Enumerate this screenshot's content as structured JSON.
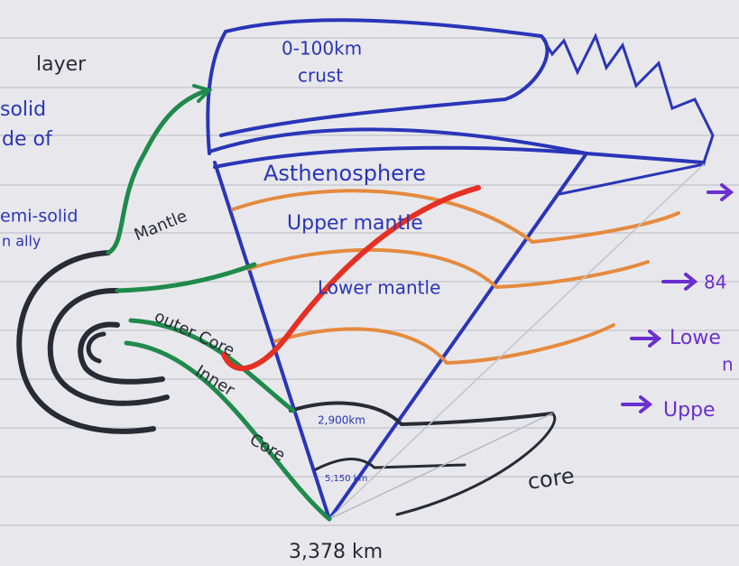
{
  "left_notes": [
    "layer",
    "solid",
    "de of",
    "emi-solid",
    "n ally"
  ],
  "diagram": {
    "crust_depth": "0-100km",
    "crust": "crust",
    "asthenosphere": "Asthenosphere",
    "upper_mantle": "Upper mantle",
    "lower_mantle": "Lower mantle",
    "mantle": "Mantle",
    "outer_core": "outer Core",
    "inner": "Inner",
    "inner_core": "Core",
    "depth_outer": "2,900km",
    "depth_inner": "5,150 km",
    "bottom_depth": "3,378 km",
    "core": "core"
  },
  "right_notes": [
    "84",
    "Lowe",
    "n",
    "Uppe"
  ]
}
